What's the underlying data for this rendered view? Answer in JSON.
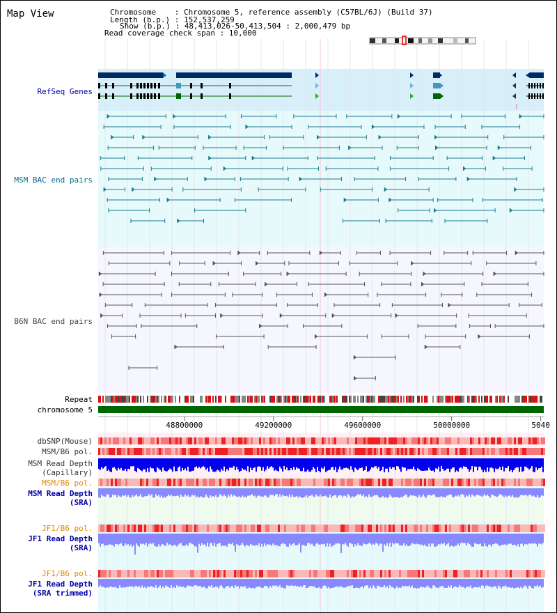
{
  "header": {
    "title": "Map View",
    "info_lines": [
      "Chromosome    : Chromosome 5, reference assembly (C57BL/6J) (Build 37)",
      "Length (b.p.) : 152,537,259",
      "Show (b.p.) : 48,413,026-50,413,504 : 2,000,479 bp",
      "Read coverage check span : 10,000"
    ]
  },
  "view": {
    "start": 48413026,
    "end": 50413504
  },
  "tracks": {
    "refseq": "RefSeq Genes",
    "msm_bac": "MSM BAC end pairs",
    "b6n_bac": "B6N BAC end pairs",
    "repeat": "Repeat",
    "chromosome": "chromosome 5",
    "dbsnp": "dbSNP(Mouse)",
    "msm_pol": "MSM/B6 pol.",
    "msm_depth_cap": "MSM Read Depth\n(Capillary)",
    "msm_pol_sra": "MSM/B6 pol.",
    "msm_depth_sra": "MSM Read Depth\n(SRA)",
    "jf1_pol": "JF1/B6 pol.",
    "jf1_depth_sra": "JF1 Read Depth\n(SRA)",
    "jf1_pol_trim": "JF1/B6 pol.",
    "jf1_depth_trim": "JF1 Read Depth\n(SRA trimmed)"
  },
  "axis": {
    "ticks": [
      "48800000",
      "49200000",
      "49600000",
      "50000000",
      "5040"
    ]
  },
  "colors": {
    "refseq_bg": "#d8eff9",
    "bac_bg": "#e6fafb",
    "navy": "#002a66",
    "teal": "#00667a",
    "green": "#006600",
    "label_blue": "#0000aa",
    "label_teal": "#006688",
    "label_orange": "#dd8800",
    "depth_blue": "#0000ee",
    "depth_light": "#8888ff"
  }
}
